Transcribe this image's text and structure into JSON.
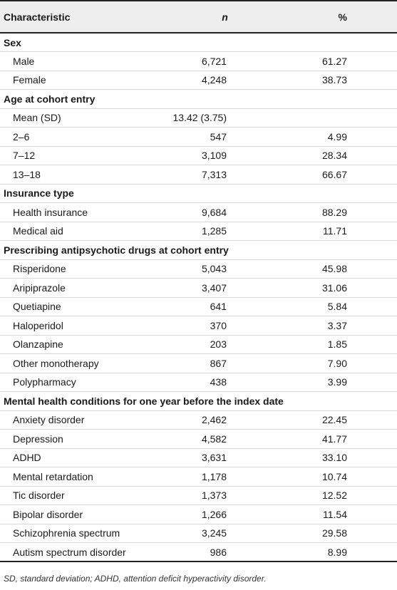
{
  "headers": {
    "characteristic": "Characteristic",
    "n": "n",
    "percent": "%"
  },
  "sections": [
    {
      "title": "Sex",
      "rows": [
        {
          "label": "Male",
          "n": "6,721",
          "pct": "61.27"
        },
        {
          "label": "Female",
          "n": "4,248",
          "pct": "38.73"
        }
      ]
    },
    {
      "title": "Age at cohort entry",
      "rows": [
        {
          "label": "Mean (SD)",
          "n": "13.42 (3.75)",
          "pct": ""
        },
        {
          "label": "2–6",
          "n": "547",
          "pct": "4.99"
        },
        {
          "label": "7–12",
          "n": "3,109",
          "pct": "28.34"
        },
        {
          "label": "13–18",
          "n": "7,313",
          "pct": "66.67"
        }
      ]
    },
    {
      "title": "Insurance type",
      "rows": [
        {
          "label": "Health insurance",
          "n": "9,684",
          "pct": "88.29"
        },
        {
          "label": "Medical aid",
          "n": "1,285",
          "pct": "11.71"
        }
      ]
    },
    {
      "title": "Prescribing antipsychotic drugs at cohort entry",
      "rows": [
        {
          "label": "Risperidone",
          "n": "5,043",
          "pct": "45.98"
        },
        {
          "label": "Aripiprazole",
          "n": "3,407",
          "pct": "31.06"
        },
        {
          "label": "Quetiapine",
          "n": "641",
          "pct": "5.84"
        },
        {
          "label": "Haloperidol",
          "n": "370",
          "pct": "3.37"
        },
        {
          "label": "Olanzapine",
          "n": "203",
          "pct": "1.85"
        },
        {
          "label": "Other monotherapy",
          "n": "867",
          "pct": "7.90"
        },
        {
          "label": "Polypharmacy",
          "n": "438",
          "pct": "3.99"
        }
      ]
    },
    {
      "title": "Mental health conditions for one year before the index date",
      "rows": [
        {
          "label": "Anxiety disorder",
          "n": "2,462",
          "pct": "22.45"
        },
        {
          "label": "Depression",
          "n": "4,582",
          "pct": "41.77"
        },
        {
          "label": "ADHD",
          "n": "3,631",
          "pct": "33.10"
        },
        {
          "label": "Mental retardation",
          "n": "1,178",
          "pct": "10.74"
        },
        {
          "label": "Tic disorder",
          "n": "1,373",
          "pct": "12.52"
        },
        {
          "label": "Bipolar disorder",
          "n": "1,266",
          "pct": "11.54"
        },
        {
          "label": "Schizophrenia spectrum",
          "n": "3,245",
          "pct": "29.58"
        },
        {
          "label": "Autism spectrum disorder",
          "n": "986",
          "pct": "8.99"
        }
      ]
    }
  ],
  "footnote": "SD, standard deviation; ADHD, attention deficit hyperactivity disorder."
}
